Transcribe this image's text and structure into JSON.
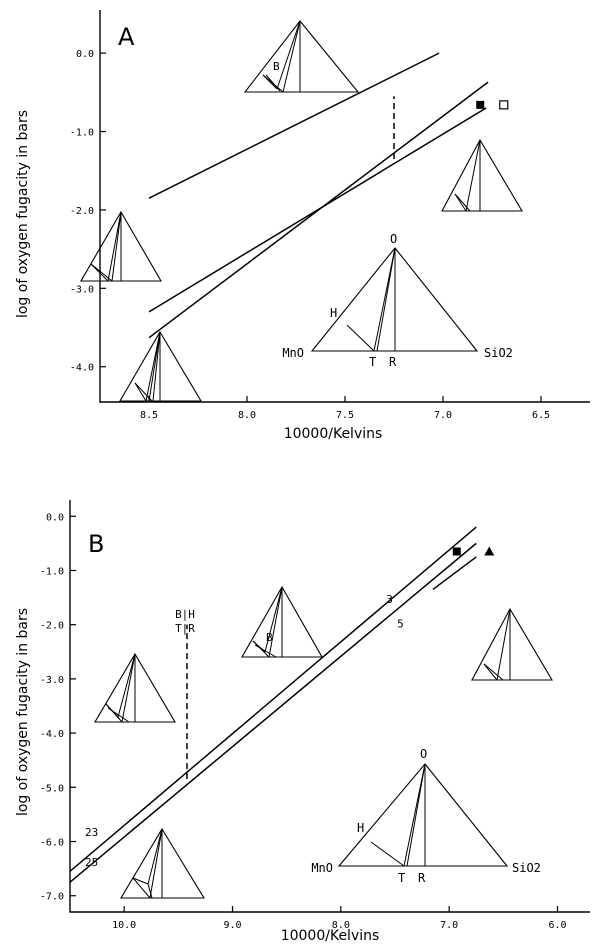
{
  "chart_data": [
    {
      "type": "line",
      "panel_label": "A",
      "xlabel": "10000/Kelvins",
      "ylabel": "log of oxygen fugacity in bars",
      "xlim": [
        8.75,
        6.25
      ],
      "ylim": [
        -4.45,
        0.55
      ],
      "x_reversed": true,
      "xticks": [
        8.5,
        8.0,
        7.5,
        7.0,
        6.5
      ],
      "xtick_labels": [
        "8.5",
        "8.0",
        "7.5",
        "7.0",
        "6.5"
      ],
      "yticks": [
        0.0,
        -1.0,
        -2.0,
        -3.0,
        -4.0
      ],
      "ytick_labels": [
        "0.0",
        "-1.0",
        "-2.0",
        "-3.0",
        "-4.0"
      ],
      "series": [
        {
          "x": [
            8.5,
            7.02
          ],
          "y": [
            -1.85,
            0.0
          ]
        },
        {
          "x": [
            8.5,
            6.78
          ],
          "y": [
            -3.3,
            -0.7
          ]
        },
        {
          "x": [
            8.5,
            6.77
          ],
          "y": [
            -3.63,
            -0.37
          ]
        }
      ],
      "dashed_lines": [
        {
          "x": [
            7.25,
            7.25
          ],
          "y": [
            -1.35,
            -0.55
          ]
        }
      ],
      "markers": [
        {
          "x": [
            6.81
          ],
          "y": [
            -0.66
          ],
          "style": "filled-square"
        },
        {
          "x": [
            6.69
          ],
          "y": [
            -0.66
          ],
          "style": "open-square"
        }
      ],
      "labels": [],
      "key_diagram": {
        "vertex_top": "O",
        "vertex_left": "MnO",
        "vertex_right": "SiO2",
        "phase_h": "H",
        "phase_t": "T",
        "phase_r": "R"
      },
      "field_label": "B"
    },
    {
      "type": "line",
      "panel_label": "B",
      "xlabel": "10000/Kelvins",
      "ylabel": "log of oxygen fugacity in bars",
      "xlim": [
        10.5,
        5.7
      ],
      "ylim": [
        -7.3,
        0.3
      ],
      "x_reversed": true,
      "xticks": [
        10.0,
        9.0,
        8.0,
        7.0,
        6.0
      ],
      "xtick_labels": [
        "10.0",
        "9.0",
        "8.0",
        "7.0",
        "6.0"
      ],
      "yticks": [
        0.0,
        -1.0,
        -2.0,
        -3.0,
        -4.0,
        -5.0,
        -6.0,
        -7.0
      ],
      "ytick_labels": [
        "0.0",
        "-1.0",
        "-2.0",
        "-3.0",
        "-4.0",
        "-5.0",
        "-6.0",
        "-7.0"
      ],
      "series": [
        {
          "x": [
            10.5,
            6.75
          ],
          "y": [
            -6.55,
            -0.2
          ]
        },
        {
          "x": [
            10.5,
            6.75
          ],
          "y": [
            -6.75,
            -0.5
          ]
        }
      ],
      "thick_segments": [
        {
          "x": [
            7.15,
            6.75
          ],
          "y": [
            -1.35,
            -0.75
          ]
        }
      ],
      "dashed_lines": [
        {
          "x": [
            9.42,
            9.42
          ],
          "y": [
            -4.85,
            -2.0
          ]
        }
      ],
      "markers": [
        {
          "x": [
            6.93
          ],
          "y": [
            -0.65
          ],
          "style": "filled-square"
        },
        {
          "x": [
            6.63
          ],
          "y": [
            -0.65
          ],
          "style": "filled-triangle"
        }
      ],
      "labels": [
        {
          "text": "3",
          "x": 7.55,
          "y": -1.6
        },
        {
          "text": "5",
          "x": 7.45,
          "y": -2.05
        },
        {
          "text": "23",
          "x": 10.3,
          "y": -5.9
        },
        {
          "text": "25",
          "x": 10.3,
          "y": -6.45
        }
      ],
      "reaction_label_top": "B|H",
      "reaction_label_bottom": "T|R",
      "key_diagram": {
        "vertex_top": "O",
        "vertex_left": "MnO",
        "vertex_right": "SiO2",
        "phase_h": "H",
        "phase_t": "T",
        "phase_r": "R"
      },
      "field_label": "B"
    }
  ]
}
